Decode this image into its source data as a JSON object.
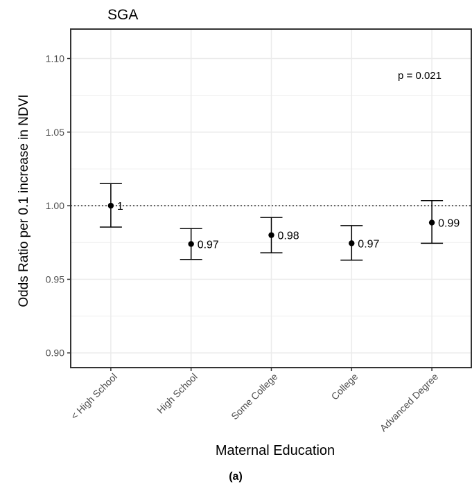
{
  "chart_data": {
    "type": "scatter",
    "title": "SGA",
    "xlabel": "Maternal Education",
    "ylabel": "Odds Ratio per 0.1 increase in NDVI",
    "categories": [
      "< High School",
      "High School",
      "Some College",
      "College",
      "Advanced Degree"
    ],
    "values": [
      1.0,
      0.974,
      0.98,
      0.9745,
      0.9885
    ],
    "lower": [
      0.9855,
      0.9635,
      0.968,
      0.963,
      0.9745
    ],
    "upper": [
      1.015,
      0.9845,
      0.992,
      0.9865,
      1.0035
    ],
    "point_labels": [
      "1",
      "0.97",
      "0.98",
      "0.97",
      "0.99"
    ],
    "ylim": [
      0.89,
      1.12
    ],
    "yticks": [
      0.9,
      0.95,
      1.0,
      1.05,
      1.1
    ],
    "ytick_labels": [
      "0.90",
      "0.95",
      "1.00",
      "1.05",
      "1.10"
    ],
    "reference_line": 1.0,
    "annotation": "p = 0.021",
    "grid": true,
    "legend": "none"
  },
  "caption": "(a)",
  "colors": {
    "background": "#ffffff",
    "grid": "#ebebeb",
    "axis": "#333333",
    "marker": "#000000",
    "text": "#000000",
    "tick_text": "#4d4d4d"
  }
}
